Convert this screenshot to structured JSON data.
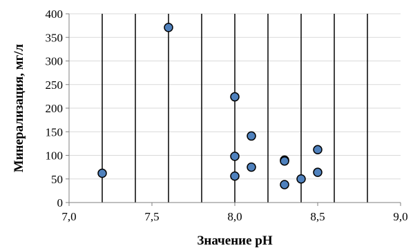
{
  "chart_data": {
    "type": "scatter",
    "xlabel": "Значение pH",
    "ylabel": "Минерализация, мг/л",
    "xlim": [
      7.0,
      9.0
    ],
    "ylim": [
      0,
      400
    ],
    "x_ticks": [
      "7,0",
      "7,5",
      "8,0",
      "8,5",
      "9,0"
    ],
    "x_tick_values": [
      7.0,
      7.5,
      8.0,
      8.5,
      9.0
    ],
    "y_ticks": [
      "0",
      "50",
      "100",
      "150",
      "200",
      "250",
      "300",
      "350",
      "400"
    ],
    "y_tick_values": [
      0,
      50,
      100,
      150,
      200,
      250,
      300,
      350,
      400
    ],
    "vertical_gridlines": [
      7.2,
      7.4,
      7.6,
      7.8,
      8.0,
      8.2,
      8.4,
      8.6,
      8.8
    ],
    "horizontal_grid": true,
    "legend": "none",
    "marker_color": "#4f81bd",
    "marker_edge_color": "#000000",
    "points": [
      {
        "x": 7.2,
        "y": 62
      },
      {
        "x": 7.6,
        "y": 371
      },
      {
        "x": 8.0,
        "y": 224
      },
      {
        "x": 8.0,
        "y": 98
      },
      {
        "x": 8.0,
        "y": 56
      },
      {
        "x": 8.1,
        "y": 141
      },
      {
        "x": 8.1,
        "y": 75
      },
      {
        "x": 8.3,
        "y": 90
      },
      {
        "x": 8.3,
        "y": 88
      },
      {
        "x": 8.3,
        "y": 38
      },
      {
        "x": 8.4,
        "y": 50
      },
      {
        "x": 8.5,
        "y": 112
      },
      {
        "x": 8.5,
        "y": 64
      }
    ]
  }
}
